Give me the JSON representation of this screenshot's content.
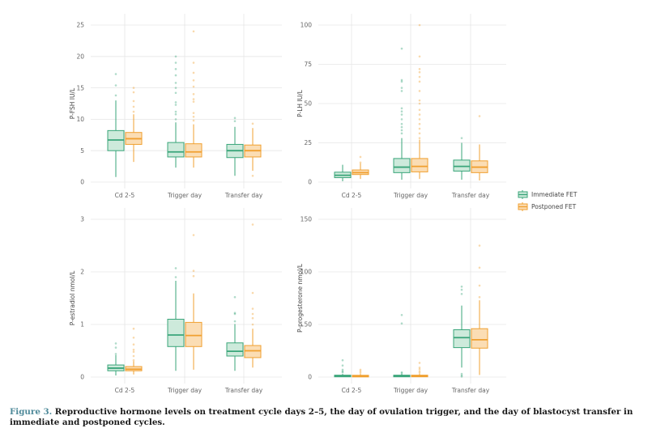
{
  "caption": {
    "label": "Figure 3.",
    "text": " Reproductive hormone levels on treatment cycle days 2–5, the day of ovulation trigger, and the day of blastocyst transfer in immediate and postponed cycles."
  },
  "colors": {
    "immediate": "#3aa57a",
    "immediate_fill": "#cdeadb",
    "postponed": "#f0a030",
    "postponed_fill": "#fbddb4",
    "grid": "#e6e6e6"
  },
  "chart_data": [
    {
      "type": "box",
      "id": "fsh",
      "ylabel": "P-FSH IU/L",
      "ylim": [
        0,
        25
      ],
      "yticks": [
        0,
        5,
        10,
        15,
        20,
        25
      ],
      "categories": [
        "Cd 2-5",
        "Trigger day",
        "Transfer day"
      ],
      "grid": true,
      "series": [
        {
          "name": "Immediate FET",
          "boxes": [
            {
              "min": 0.8,
              "q1": 5.0,
              "median": 6.7,
              "q3": 8.2,
              "max": 13.0,
              "outliers": [
                13.8,
                15.4,
                17.2
              ]
            },
            {
              "min": 2.3,
              "q1": 4.0,
              "median": 4.8,
              "q3": 6.3,
              "max": 9.5,
              "outliers": [
                10.0,
                10.8,
                11.2,
                12.3,
                12.7,
                14.2,
                15.0,
                15.8,
                17.0,
                18.0,
                19.0,
                20.0
              ]
            },
            {
              "min": 1.0,
              "q1": 3.9,
              "median": 5.0,
              "q3": 6.0,
              "max": 8.8,
              "outliers": [
                9.7,
                10.2
              ]
            }
          ]
        },
        {
          "name": "Postponed FET",
          "boxes": [
            {
              "min": 3.2,
              "q1": 6.0,
              "median": 6.9,
              "q3": 7.9,
              "max": 10.8,
              "outliers": [
                11.2,
                12.0,
                12.9,
                14.3,
                15.0
              ]
            },
            {
              "min": 2.3,
              "q1": 4.0,
              "median": 4.8,
              "q3": 6.1,
              "max": 9.2,
              "outliers": [
                9.8,
                10.4,
                11.0,
                12.8,
                13.2,
                14.0,
                15.2,
                16.2,
                17.4,
                19.0,
                24.0
              ]
            },
            {
              "min": 1.8,
              "q1": 4.0,
              "median": 5.0,
              "q3": 5.9,
              "max": 8.6,
              "outliers": [
                1.0,
                9.3
              ]
            }
          ]
        }
      ]
    },
    {
      "type": "box",
      "id": "lh",
      "ylabel": "P-LH IU/L",
      "ylim": [
        0,
        100
      ],
      "yticks": [
        0,
        25,
        50,
        75,
        100
      ],
      "categories": [
        "Cd 2-5",
        "Trigger day",
        "Transfer day"
      ],
      "grid": true,
      "series": [
        {
          "name": "Immediate FET",
          "boxes": [
            {
              "min": 0.5,
              "q1": 2.8,
              "median": 4.3,
              "q3": 6.3,
              "max": 11.0,
              "outliers": []
            },
            {
              "min": 1.5,
              "q1": 6.0,
              "median": 9.5,
              "q3": 15.0,
              "max": 28.0,
              "outliers": [
                31,
                33,
                35,
                37,
                40,
                43,
                45,
                47,
                58,
                60,
                64,
                65,
                85
              ]
            },
            {
              "min": 1.5,
              "q1": 7.0,
              "median": 10.0,
              "q3": 14.0,
              "max": 25.0,
              "outliers": [
                28
              ]
            }
          ]
        },
        {
          "name": "Postponed FET",
          "boxes": [
            {
              "min": 2.0,
              "q1": 4.8,
              "median": 6.0,
              "q3": 7.7,
              "max": 12.0,
              "outliers": [
                12.5,
                16
              ]
            },
            {
              "min": 2.0,
              "q1": 6.5,
              "median": 10.0,
              "q3": 15.0,
              "max": 27.0,
              "outliers": [
                28,
                31,
                34,
                37,
                40,
                43,
                46,
                50,
                52,
                58,
                64,
                67,
                70,
                72,
                80,
                100
              ]
            },
            {
              "min": 1.0,
              "q1": 6.0,
              "median": 9.5,
              "q3": 13.5,
              "max": 24.0,
              "outliers": [
                42
              ]
            }
          ]
        }
      ]
    },
    {
      "type": "box",
      "id": "estradiol",
      "ylabel": "P-estradiol nmol/L",
      "ylim": [
        0,
        3
      ],
      "yticks": [
        0,
        1,
        2,
        3
      ],
      "categories": [
        "Cd 2-5",
        "Trigger day",
        "Transfer day"
      ],
      "grid": true,
      "series": [
        {
          "name": "Immediate FET",
          "boxes": [
            {
              "min": 0.03,
              "q1": 0.12,
              "median": 0.17,
              "q3": 0.23,
              "max": 0.42,
              "outliers": [
                0.44,
                0.56,
                0.64
              ]
            },
            {
              "min": 0.12,
              "q1": 0.58,
              "median": 0.8,
              "q3": 1.1,
              "max": 1.83,
              "outliers": [
                1.9,
                2.07
              ]
            },
            {
              "min": 0.12,
              "q1": 0.4,
              "median": 0.49,
              "q3": 0.65,
              "max": 1.01,
              "outliers": [
                1.06,
                1.2,
                1.22,
                1.52
              ]
            }
          ]
        },
        {
          "name": "Postponed FET",
          "boxes": [
            {
              "min": 0.05,
              "q1": 0.12,
              "median": 0.15,
              "q3": 0.2,
              "max": 0.3,
              "outliers": [
                0.32,
                0.4,
                0.48,
                0.52,
                0.62,
                0.75,
                0.92
              ]
            },
            {
              "min": 0.14,
              "q1": 0.58,
              "median": 0.79,
              "q3": 1.04,
              "max": 1.59,
              "outliers": [
                1.92,
                2.02,
                2.7
              ]
            },
            {
              "min": 0.18,
              "q1": 0.37,
              "median": 0.5,
              "q3": 0.6,
              "max": 0.92,
              "outliers": [
                1.0,
                1.12,
                1.2,
                1.3,
                1.6,
                2.9
              ]
            }
          ]
        }
      ]
    },
    {
      "type": "box",
      "id": "progesterone",
      "ylabel": "P-progesterone nmol/L",
      "ylim": [
        0,
        150
      ],
      "yticks": [
        0,
        50,
        100,
        150
      ],
      "categories": [
        "Cd 2-5",
        "Trigger day",
        "Transfer day"
      ],
      "grid": true,
      "series": [
        {
          "name": "Immediate FET",
          "boxes": [
            {
              "min": 0.2,
              "q1": 0.8,
              "median": 1.2,
              "q3": 1.8,
              "max": 3.0,
              "outliers": [
                4.5,
                5.5,
                7.0,
                11.0,
                16.0
              ]
            },
            {
              "min": 0.3,
              "q1": 0.8,
              "median": 1.2,
              "q3": 1.8,
              "max": 2.8,
              "outliers": [
                3.5,
                4.5,
                51,
                59
              ]
            },
            {
              "min": 9.0,
              "q1": 28.0,
              "median": 37.5,
              "q3": 45.0,
              "max": 68.0,
              "outliers": [
                0.5,
                1.5,
                3.0,
                79,
                83,
                86
              ]
            }
          ]
        },
        {
          "name": "Postponed FET",
          "boxes": [
            {
              "min": 0.2,
              "q1": 0.7,
              "median": 1.1,
              "q3": 1.7,
              "max": 3.0,
              "outliers": [
                4.0,
                5.5,
                7.0
              ]
            },
            {
              "min": 0.2,
              "q1": 0.7,
              "median": 1.1,
              "q3": 1.8,
              "max": 3.0,
              "outliers": [
                4.0,
                5.5,
                7.5,
                9.0,
                13.5
              ]
            },
            {
              "min": 2.0,
              "q1": 27.5,
              "median": 35.5,
              "q3": 46.0,
              "max": 73.0,
              "outliers": [
                76,
                87,
                104,
                125
              ]
            }
          ]
        }
      ]
    }
  ],
  "legend": {
    "position": "right",
    "items": [
      {
        "label": "Immediate FET",
        "series": "immediate"
      },
      {
        "label": "Postponed FET",
        "series": "postponed"
      }
    ]
  }
}
